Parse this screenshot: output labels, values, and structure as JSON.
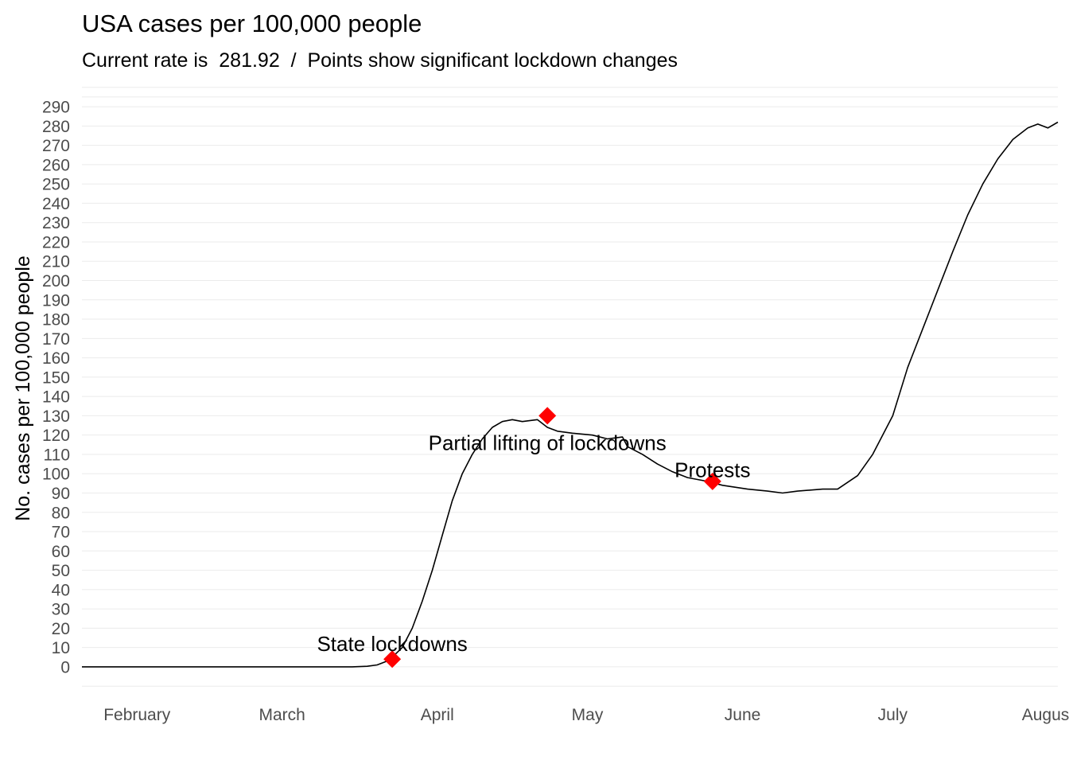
{
  "chart_data": {
    "type": "line",
    "title": "USA cases per 100,000 people",
    "subtitle": "Current rate is  281.92  /  Points show significant lockdown changes",
    "xlabel": "",
    "ylabel": "No. cases per 100,000 people",
    "x_range": [
      "2020-01-21",
      "2020-08-03"
    ],
    "y_range": [
      -10,
      300
    ],
    "y_ticks": [
      0,
      10,
      20,
      30,
      40,
      50,
      60,
      70,
      80,
      90,
      100,
      110,
      120,
      130,
      140,
      150,
      160,
      170,
      180,
      190,
      200,
      210,
      220,
      230,
      240,
      250,
      260,
      270,
      280,
      290
    ],
    "x_ticks": [
      {
        "date": "2020-02-01",
        "label": "February"
      },
      {
        "date": "2020-03-01",
        "label": "March"
      },
      {
        "date": "2020-04-01",
        "label": "April"
      },
      {
        "date": "2020-05-01",
        "label": "May"
      },
      {
        "date": "2020-06-01",
        "label": "June"
      },
      {
        "date": "2020-07-01",
        "label": "July"
      },
      {
        "date": "2020-08-01",
        "label": "August"
      }
    ],
    "grid": true,
    "legend": "none",
    "line_color": "#000000",
    "point_color": "#ff0000",
    "series": [
      {
        "points": [
          [
            "2020-01-21",
            0
          ],
          [
            "2020-02-15",
            0
          ],
          [
            "2020-03-01",
            0
          ],
          [
            "2020-03-15",
            0
          ],
          [
            "2020-03-18",
            0.3
          ],
          [
            "2020-03-20",
            1
          ],
          [
            "2020-03-22",
            3
          ],
          [
            "2020-03-23",
            5
          ],
          [
            "2020-03-25",
            10
          ],
          [
            "2020-03-27",
            20
          ],
          [
            "2020-03-29",
            34
          ],
          [
            "2020-03-31",
            50
          ],
          [
            "2020-04-02",
            68
          ],
          [
            "2020-04-04",
            86
          ],
          [
            "2020-04-06",
            100
          ],
          [
            "2020-04-08",
            110
          ],
          [
            "2020-04-10",
            118
          ],
          [
            "2020-04-12",
            124
          ],
          [
            "2020-04-14",
            127
          ],
          [
            "2020-04-16",
            128
          ],
          [
            "2020-04-18",
            127
          ],
          [
            "2020-04-21",
            128
          ],
          [
            "2020-04-23",
            124
          ],
          [
            "2020-04-25",
            122
          ],
          [
            "2020-04-28",
            121
          ],
          [
            "2020-05-02",
            120
          ],
          [
            "2020-05-05",
            118
          ],
          [
            "2020-05-08",
            119
          ],
          [
            "2020-05-09",
            114
          ],
          [
            "2020-05-12",
            110
          ],
          [
            "2020-05-15",
            105
          ],
          [
            "2020-05-18",
            101
          ],
          [
            "2020-05-21",
            98
          ],
          [
            "2020-05-25",
            96
          ],
          [
            "2020-05-28",
            94
          ],
          [
            "2020-06-02",
            92
          ],
          [
            "2020-06-06",
            91
          ],
          [
            "2020-06-09",
            90
          ],
          [
            "2020-06-12",
            91
          ],
          [
            "2020-06-17",
            92
          ],
          [
            "2020-06-20",
            92
          ],
          [
            "2020-06-24",
            99
          ],
          [
            "2020-06-27",
            110
          ],
          [
            "2020-07-01",
            130
          ],
          [
            "2020-07-04",
            155
          ],
          [
            "2020-07-07",
            175
          ],
          [
            "2020-07-10",
            195
          ],
          [
            "2020-07-13",
            215
          ],
          [
            "2020-07-16",
            234
          ],
          [
            "2020-07-19",
            250
          ],
          [
            "2020-07-22",
            263
          ],
          [
            "2020-07-25",
            273
          ],
          [
            "2020-07-28",
            279
          ],
          [
            "2020-07-30",
            281
          ],
          [
            "2020-08-01",
            279
          ],
          [
            "2020-08-03",
            282
          ]
        ]
      }
    ],
    "annotations": [
      {
        "date": "2020-03-23",
        "y": 4,
        "label": "State lockdowns",
        "label_y": 12
      },
      {
        "date": "2020-04-23",
        "y": 130,
        "label": "Partial lifting of lockdowns",
        "label_y": 116
      },
      {
        "date": "2020-05-26",
        "y": 96,
        "label": "Protests",
        "label_y": 102
      }
    ]
  }
}
